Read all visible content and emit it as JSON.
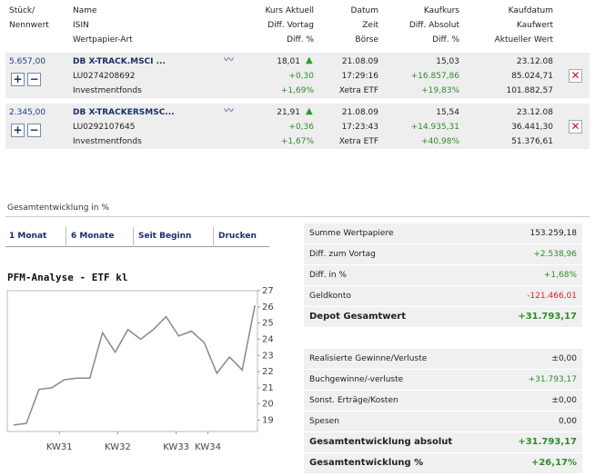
{
  "header": {
    "columns": [
      [
        "Stück/",
        "Nennwert"
      ],
      [
        "Name",
        "ISIN",
        "Wertpapier-Art"
      ],
      [
        "Kurs Aktuell",
        "Diff. Vortag",
        "Diff. %"
      ],
      [
        "Datum",
        "Zeit",
        "Börse"
      ],
      [
        "Kaufkurs",
        "Diff. Absolut",
        "Diff. %"
      ],
      [
        "Kaufdatum",
        "Kaufwert",
        "Aktueller Wert"
      ]
    ]
  },
  "holdings": [
    {
      "qty": "5.657,00",
      "name": "DB X-TRACK.MSCI ...",
      "isin": "LU0274208692",
      "kind": "Investmentfonds",
      "price": "18,01",
      "diff_day": "+0,30",
      "diff_day_pct": "+1,69%",
      "date": "21.08.09",
      "time": "17:29:16",
      "exchange": "Xetra ETF",
      "buy_price": "15,03",
      "diff_abs": "+16.857,86",
      "diff_pct": "+19,83%",
      "buy_date": "23.12.08",
      "buy_value": "85.024,71",
      "current_value": "101.882,57"
    },
    {
      "qty": "2.345,00",
      "name": "DB X-TRACKERSMSC...",
      "isin": "LU0292107645",
      "kind": "Investmentfonds",
      "price": "21,91",
      "diff_day": "+0,36",
      "diff_day_pct": "+1,67%",
      "date": "21.08.09",
      "time": "17:23:43",
      "exchange": "Xetra ETF",
      "buy_price": "15,54",
      "diff_abs": "+14.935,31",
      "diff_pct": "+40,98%",
      "buy_date": "23.12.08",
      "buy_value": "36.441,30",
      "current_value": "51.376,61"
    }
  ],
  "section_title": "Gesamtentwicklung in %",
  "tabs": [
    "1 Monat",
    "6 Monate",
    "Seit Beginn",
    "Drucken"
  ],
  "chart": {
    "type": "line",
    "title": "PFM-Analyse - ETF kl",
    "color": "#888888",
    "x": [
      0,
      1,
      2,
      3,
      4,
      5,
      6,
      7,
      8,
      9,
      10,
      11,
      12,
      13,
      14,
      15,
      16,
      17,
      18,
      19
    ],
    "values": [
      18.7,
      18.8,
      20.9,
      21.0,
      21.5,
      21.6,
      21.6,
      24.4,
      23.2,
      24.6,
      24.0,
      24.6,
      25.4,
      24.2,
      24.5,
      23.8,
      21.9,
      22.9,
      22.1,
      26.1
    ],
    "xlim": [
      -0.5,
      19.2
    ],
    "ylim": [
      18.3,
      27
    ],
    "xticks": [
      {
        "value": 3.6,
        "label": "KW31"
      },
      {
        "value": 8.2,
        "label": "KW32"
      },
      {
        "value": 12.8,
        "label": "KW33"
      },
      {
        "value": 15.3,
        "label": "KW34"
      }
    ],
    "yticks": [
      19,
      20,
      21,
      22,
      23,
      24,
      25,
      26,
      27
    ]
  },
  "summary": [
    [
      {
        "label": "Summe Wertpapiere",
        "value": "153.259,18"
      },
      {
        "label": "Diff. zum Vortag",
        "value": "+2.538,96",
        "color": "#2e8b2e"
      },
      {
        "label": "Diff. in %",
        "value": "+1,68%",
        "color": "#2e8b2e"
      },
      {
        "label": "Geldkonto",
        "value": "-121.466,01",
        "color": "#e02020"
      },
      {
        "label": "Depot Gesamtwert",
        "value": "+31.793,17",
        "color": "#2e8b2e",
        "bold": true
      }
    ],
    [
      {
        "label": "Realisierte Gewinne/Verluste",
        "value": "±0,00"
      },
      {
        "label": "Buchgewinne/-verluste",
        "value": "+31.793,17",
        "color": "#2e8b2e"
      },
      {
        "label": "Sonst. Erträge/Kosten",
        "value": "±0,00"
      },
      {
        "label": "Spesen",
        "value": "0,00"
      },
      {
        "label": "Gesamtentwicklung absolut",
        "value": "+31.793,17",
        "color": "#2e8b2e",
        "bold": true
      },
      {
        "label": "Gesamtentwicklung %",
        "value": "+26,17%",
        "color": "#2e8b2e",
        "bold": true
      }
    ]
  ]
}
